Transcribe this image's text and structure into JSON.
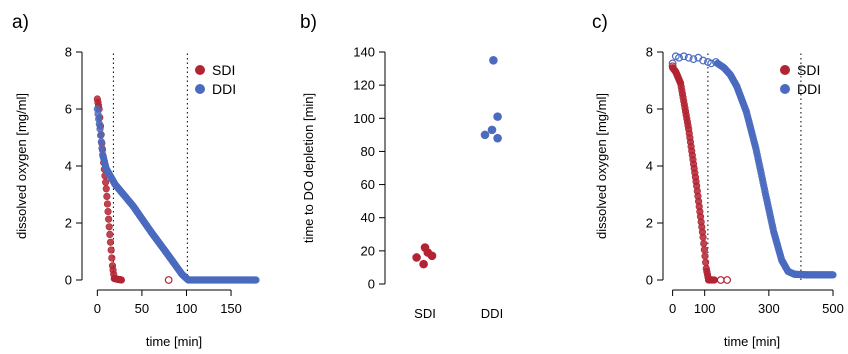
{
  "colors": {
    "SDI": "#b22433",
    "DDI": "#4a6bbf"
  },
  "chart_data": [
    {
      "panel_label": "a)",
      "type": "scatter",
      "xlabel": "time [min]",
      "ylabel": "dissolved oxygen [mg/ml]",
      "xlim": [
        -6,
        178
      ],
      "ylim": [
        0,
        8
      ],
      "xticks": [
        0,
        50,
        100,
        150
      ],
      "yticks": [
        0,
        2,
        4,
        6,
        8
      ],
      "vlines": [
        18,
        101
      ],
      "legend": {
        "position": "top-right",
        "entries": [
          "SDI",
          "DDI"
        ]
      },
      "series": [
        {
          "name": "SDI",
          "segments": [
            [
              0,
              6.35
            ],
            [
              2,
              6.0
            ],
            [
              5,
              4.8
            ],
            [
              10,
              3.2
            ],
            [
              14,
              1.6
            ],
            [
              17,
              0.5
            ],
            [
              19,
              0.05
            ],
            [
              27,
              0.0
            ]
          ],
          "open_points": [
            [
              80,
              0.0
            ]
          ]
        },
        {
          "name": "DDI",
          "segments": [
            [
              0,
              6.0
            ],
            [
              3,
              5.3
            ],
            [
              6,
              4.4
            ],
            [
              10,
              3.9
            ],
            [
              20,
              3.35
            ],
            [
              40,
              2.6
            ],
            [
              60,
              1.7
            ],
            [
              80,
              0.85
            ],
            [
              95,
              0.2
            ],
            [
              102,
              0.0
            ],
            [
              178,
              0.0
            ]
          ],
          "open_points": []
        }
      ]
    },
    {
      "panel_label": "b)",
      "type": "scatter",
      "xlabel": "",
      "ylabel": "time to DO depletion [min]",
      "categories": [
        "SDI",
        "DDI"
      ],
      "ylim": [
        0,
        140
      ],
      "yticks": [
        0,
        20,
        40,
        60,
        80,
        100,
        120,
        140
      ],
      "series": [
        {
          "name": "SDI",
          "points": [
            [
              -0.12,
              16
            ],
            [
              0,
              22
            ],
            [
              0.1,
              17
            ],
            [
              -0.02,
              12
            ],
            [
              0.04,
              19
            ]
          ]
        },
        {
          "name": "DDI",
          "points": [
            [
              -0.1,
              90
            ],
            [
              0,
              93
            ],
            [
              0.08,
              88
            ],
            [
              0.08,
              101
            ],
            [
              0.02,
              135
            ]
          ]
        }
      ]
    },
    {
      "panel_label": "c)",
      "type": "scatter",
      "xlabel": "time [min]",
      "ylabel": "dissolved oxygen [mg/ml]",
      "xlim": [
        -5,
        500
      ],
      "ylim": [
        0,
        8
      ],
      "xticks": [
        0,
        100,
        300,
        500
      ],
      "xtick_labels": [
        "0",
        "100",
        "300",
        "500"
      ],
      "yticks": [
        0,
        2,
        4,
        6,
        8
      ],
      "vlines": [
        110,
        400
      ],
      "legend": {
        "position": "top-right",
        "entries": [
          "SDI",
          "DDI"
        ]
      },
      "series": [
        {
          "name": "SDI",
          "segments": [
            [
              0,
              7.45
            ],
            [
              10,
              7.3
            ],
            [
              25,
              6.9
            ],
            [
              50,
              5.3
            ],
            [
              75,
              3.3
            ],
            [
              95,
              1.5
            ],
            [
              105,
              0.4
            ],
            [
              112,
              0.0
            ],
            [
              130,
              0.0
            ]
          ],
          "open_points": [
            [
              0,
              7.5
            ],
            [
              150,
              0.0
            ],
            [
              170,
              0.0
            ]
          ]
        },
        {
          "name": "DDI",
          "open_points": [
            [
              0,
              7.6
            ],
            [
              10,
              7.85
            ],
            [
              20,
              7.8
            ],
            [
              35,
              7.85
            ],
            [
              50,
              7.8
            ],
            [
              65,
              7.75
            ],
            [
              80,
              7.8
            ],
            [
              95,
              7.7
            ],
            [
              110,
              7.65
            ],
            [
              120,
              7.6
            ],
            [
              135,
              7.65
            ]
          ],
          "segments": [
            [
              140,
              7.6
            ],
            [
              160,
              7.45
            ],
            [
              180,
              7.2
            ],
            [
              200,
              6.8
            ],
            [
              230,
              5.9
            ],
            [
              260,
              4.6
            ],
            [
              290,
              3.0
            ],
            [
              315,
              1.7
            ],
            [
              340,
              0.7
            ],
            [
              360,
              0.3
            ],
            [
              380,
              0.2
            ],
            [
              420,
              0.18
            ],
            [
              500,
              0.18
            ]
          ]
        }
      ]
    }
  ]
}
